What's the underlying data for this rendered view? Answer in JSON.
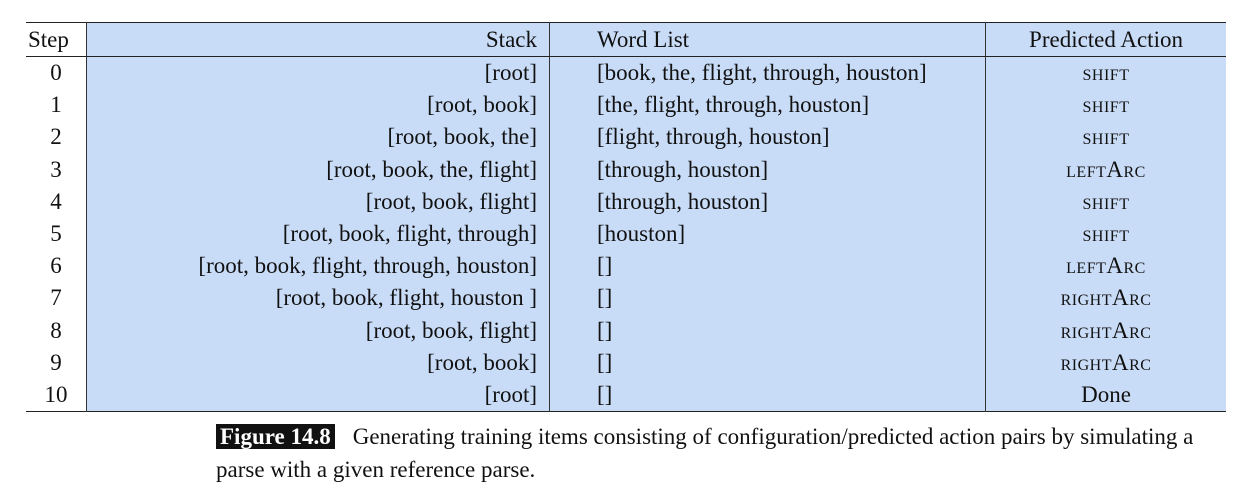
{
  "table": {
    "headers": [
      "Step",
      "Stack",
      "Word List",
      "Predicted Action"
    ],
    "rows": [
      [
        "0",
        "[root]",
        "[book, the, flight, through, houston]",
        "SHIFT"
      ],
      [
        "1",
        "[root, book]",
        "[the, flight, through, houston]",
        "SHIFT"
      ],
      [
        "2",
        "[root, book, the]",
        "[flight, through, houston]",
        "SHIFT"
      ],
      [
        "3",
        "[root, book, the, flight]",
        "[through, houston]",
        "LEFTARC"
      ],
      [
        "4",
        "[root, book, flight]",
        "[through, houston]",
        "SHIFT"
      ],
      [
        "5",
        "[root, book, flight, through]",
        "[houston]",
        "SHIFT"
      ],
      [
        "6",
        "[root, book, flight, through, houston]",
        "[]",
        "LEFTARC"
      ],
      [
        "7",
        "[root, book, flight, houston ]",
        "[]",
        "RIGHTARC"
      ],
      [
        "8",
        "[root, book, flight]",
        "[]",
        "RIGHTARC"
      ],
      [
        "9",
        "[root, book]",
        "[]",
        "RIGHTARC"
      ],
      [
        "10",
        "[root]",
        "[]",
        "Done"
      ]
    ]
  },
  "caption": {
    "label": "Figure 14.8",
    "text": "Generating training items consisting of configuration/predicted action pairs by simulating a parse with a given reference parse."
  },
  "colors": {
    "cell_bg": "#c9dcf7",
    "label_bg": "#111111"
  }
}
